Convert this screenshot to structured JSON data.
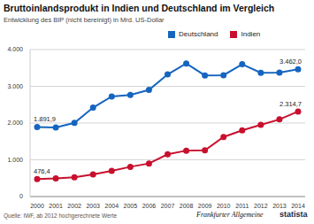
{
  "chart_data": {
    "type": "line",
    "title": "Bruttoinlandsprodukt in Indien und Deutschland im Vergleich",
    "subtitle": "Entwicklung des BIP (nicht bereinigt) in Mrd. US-Dollar",
    "categories": [
      "2000",
      "2001",
      "2002",
      "2003",
      "2004",
      "2005",
      "2006",
      "2007",
      "2008",
      "2009",
      "2010",
      "2011",
      "2012",
      "2013",
      "2014"
    ],
    "series": [
      {
        "name": "Deutschland",
        "color": "#1565c0",
        "marker": "circle",
        "values": [
          1891.9,
          1880,
          2007,
          2420,
          2725,
          2766,
          2902,
          3324,
          3623,
          3298,
          3304,
          3600,
          3367,
          3375,
          3462.0
        ],
        "value_labels": [
          "1.891,9",
          null,
          null,
          null,
          null,
          null,
          null,
          null,
          null,
          null,
          null,
          null,
          null,
          null,
          "3.462,0"
        ]
      },
      {
        "name": "Indien",
        "color": "#c8102e",
        "marker": "circle",
        "values": [
          476.4,
          493,
          523,
          600,
          700,
          810,
          900,
          1150,
          1250,
          1260,
          1620,
          1800,
          1950,
          2100,
          2314.7
        ],
        "value_labels": [
          "476,4",
          null,
          null,
          null,
          null,
          null,
          null,
          null,
          null,
          null,
          null,
          null,
          null,
          null,
          "2.314,7"
        ]
      }
    ],
    "ylim": [
      0,
      4000
    ],
    "yticks": [
      0,
      {
        "value": 1000,
        "label": "1.000"
      },
      {
        "value": 2000,
        "label": "2.000"
      },
      {
        "value": 3000,
        "label": "3.000"
      },
      {
        "value": 4000,
        "label": "4.000"
      }
    ],
    "grid": true,
    "legend": "top right",
    "data_labels": true,
    "annotations": [
      "Quelle: IWF, ab 2012 hochgerechnete Werte",
      "Frankfurter Allgemeine",
      "statista"
    ]
  }
}
